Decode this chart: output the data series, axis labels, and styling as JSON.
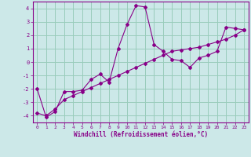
{
  "xlabel": "Windchill (Refroidissement éolien,°C)",
  "bg_color": "#cce8e8",
  "line_color": "#880088",
  "grid_color": "#99ccbb",
  "xlim": [
    -0.5,
    23.5
  ],
  "ylim": [
    -4.5,
    4.5
  ],
  "xticks": [
    0,
    1,
    2,
    3,
    4,
    5,
    6,
    7,
    8,
    9,
    10,
    11,
    12,
    13,
    14,
    15,
    16,
    17,
    18,
    19,
    20,
    21,
    22,
    23
  ],
  "yticks": [
    -4,
    -3,
    -2,
    -1,
    0,
    1,
    2,
    3,
    4
  ],
  "line1_x": [
    0,
    1,
    2,
    3,
    4,
    5,
    6,
    7,
    8,
    9,
    10,
    11,
    12,
    13,
    14,
    15,
    16,
    17,
    18,
    19,
    20,
    21,
    22,
    23
  ],
  "line1_y": [
    -2.0,
    -4.1,
    -3.7,
    -2.2,
    -2.2,
    -2.1,
    -1.3,
    -0.9,
    -1.5,
    1.0,
    2.8,
    4.2,
    4.1,
    1.3,
    0.8,
    0.2,
    0.1,
    -0.4,
    0.3,
    0.5,
    0.8,
    2.6,
    2.5,
    2.4
  ],
  "line2_x": [
    0,
    1,
    2,
    3,
    4,
    5,
    6,
    7,
    8,
    9,
    10,
    11,
    12,
    13,
    14,
    15,
    16,
    17,
    18,
    19,
    20,
    21,
    22,
    23
  ],
  "line2_y": [
    -3.8,
    -4.0,
    -3.5,
    -2.8,
    -2.5,
    -2.2,
    -1.9,
    -1.6,
    -1.3,
    -1.0,
    -0.7,
    -0.4,
    -0.1,
    0.2,
    0.5,
    0.8,
    0.9,
    1.0,
    1.1,
    1.3,
    1.5,
    1.7,
    2.0,
    2.4
  ]
}
